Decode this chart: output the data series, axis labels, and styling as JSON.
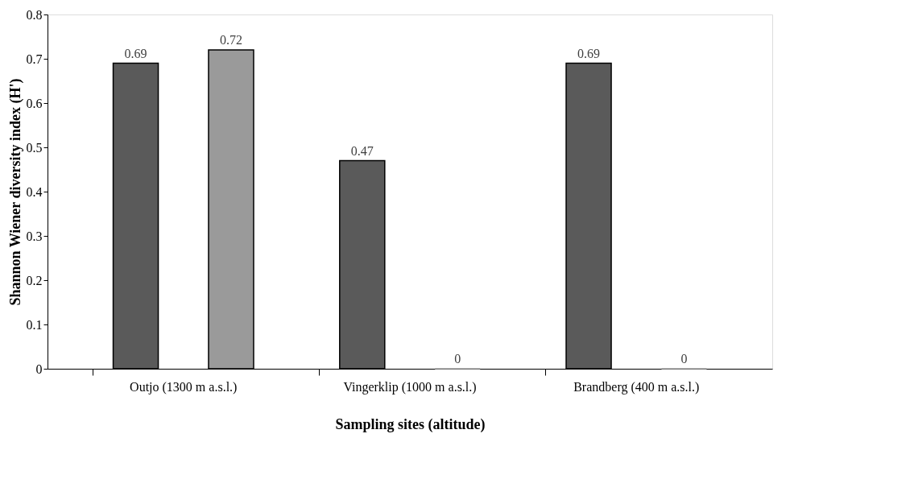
{
  "chart_data": {
    "type": "bar",
    "xlabel": "Sampling sites (altitude)",
    "ylabel": "Shannon Wiener diversity index (H')",
    "categories": [
      "Outjo (1300 m a.s.l.)",
      "Vingerklip (1000 m a.s.l.)",
      "Brandberg (400 m a.s.l.)"
    ],
    "series": [
      {
        "color": "#5a5a5a",
        "values": [
          0.69,
          0.47,
          0.69
        ]
      },
      {
        "color": "#9a9a9a",
        "values": [
          0.72,
          0,
          0
        ]
      }
    ],
    "ylim": [
      0,
      0.8
    ],
    "yticks": [
      0,
      0.1,
      0.2,
      0.3,
      0.4,
      0.5,
      0.6,
      0.7,
      0.8
    ],
    "data_labels": true,
    "grid": false
  }
}
